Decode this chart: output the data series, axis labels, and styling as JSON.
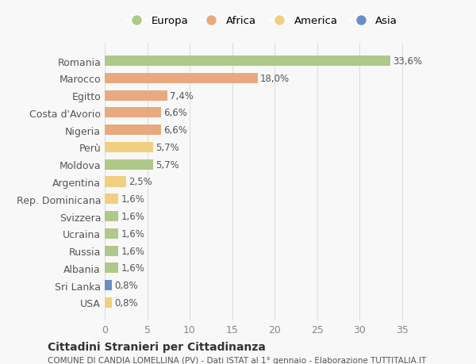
{
  "categories": [
    "Romania",
    "Marocco",
    "Egitto",
    "Costa d'Avorio",
    "Nigeria",
    "Perù",
    "Moldova",
    "Argentina",
    "Rep. Dominicana",
    "Svizzera",
    "Ucraina",
    "Russia",
    "Albania",
    "Sri Lanka",
    "USA"
  ],
  "values": [
    33.6,
    18.0,
    7.4,
    6.6,
    6.6,
    5.7,
    5.7,
    2.5,
    1.6,
    1.6,
    1.6,
    1.6,
    1.6,
    0.8,
    0.8
  ],
  "labels": [
    "33,6%",
    "18,0%",
    "7,4%",
    "6,6%",
    "6,6%",
    "5,7%",
    "5,7%",
    "2,5%",
    "1,6%",
    "1,6%",
    "1,6%",
    "1,6%",
    "1,6%",
    "0,8%",
    "0,8%"
  ],
  "colors": [
    "#aec98a",
    "#e8a97e",
    "#e8a97e",
    "#e8a97e",
    "#e8a97e",
    "#f0d080",
    "#aec98a",
    "#f0d080",
    "#f0d080",
    "#aec98a",
    "#aec98a",
    "#aec98a",
    "#aec98a",
    "#6b8ec4",
    "#f0d080"
  ],
  "legend_labels": [
    "Europa",
    "Africa",
    "America",
    "Asia"
  ],
  "legend_colors": [
    "#aec98a",
    "#e8a97e",
    "#f0d080",
    "#6b8ec4"
  ],
  "title": "Cittadini Stranieri per Cittadinanza",
  "subtitle": "COMUNE DI CANDIA LOMELLINA (PV) - Dati ISTAT al 1° gennaio - Elaborazione TUTTITALIA.IT",
  "xlim": [
    0,
    37
  ],
  "xticks": [
    0,
    5,
    10,
    15,
    20,
    25,
    30,
    35
  ],
  "bg_color": "#f8f8f8",
  "grid_color": "#dddddd"
}
